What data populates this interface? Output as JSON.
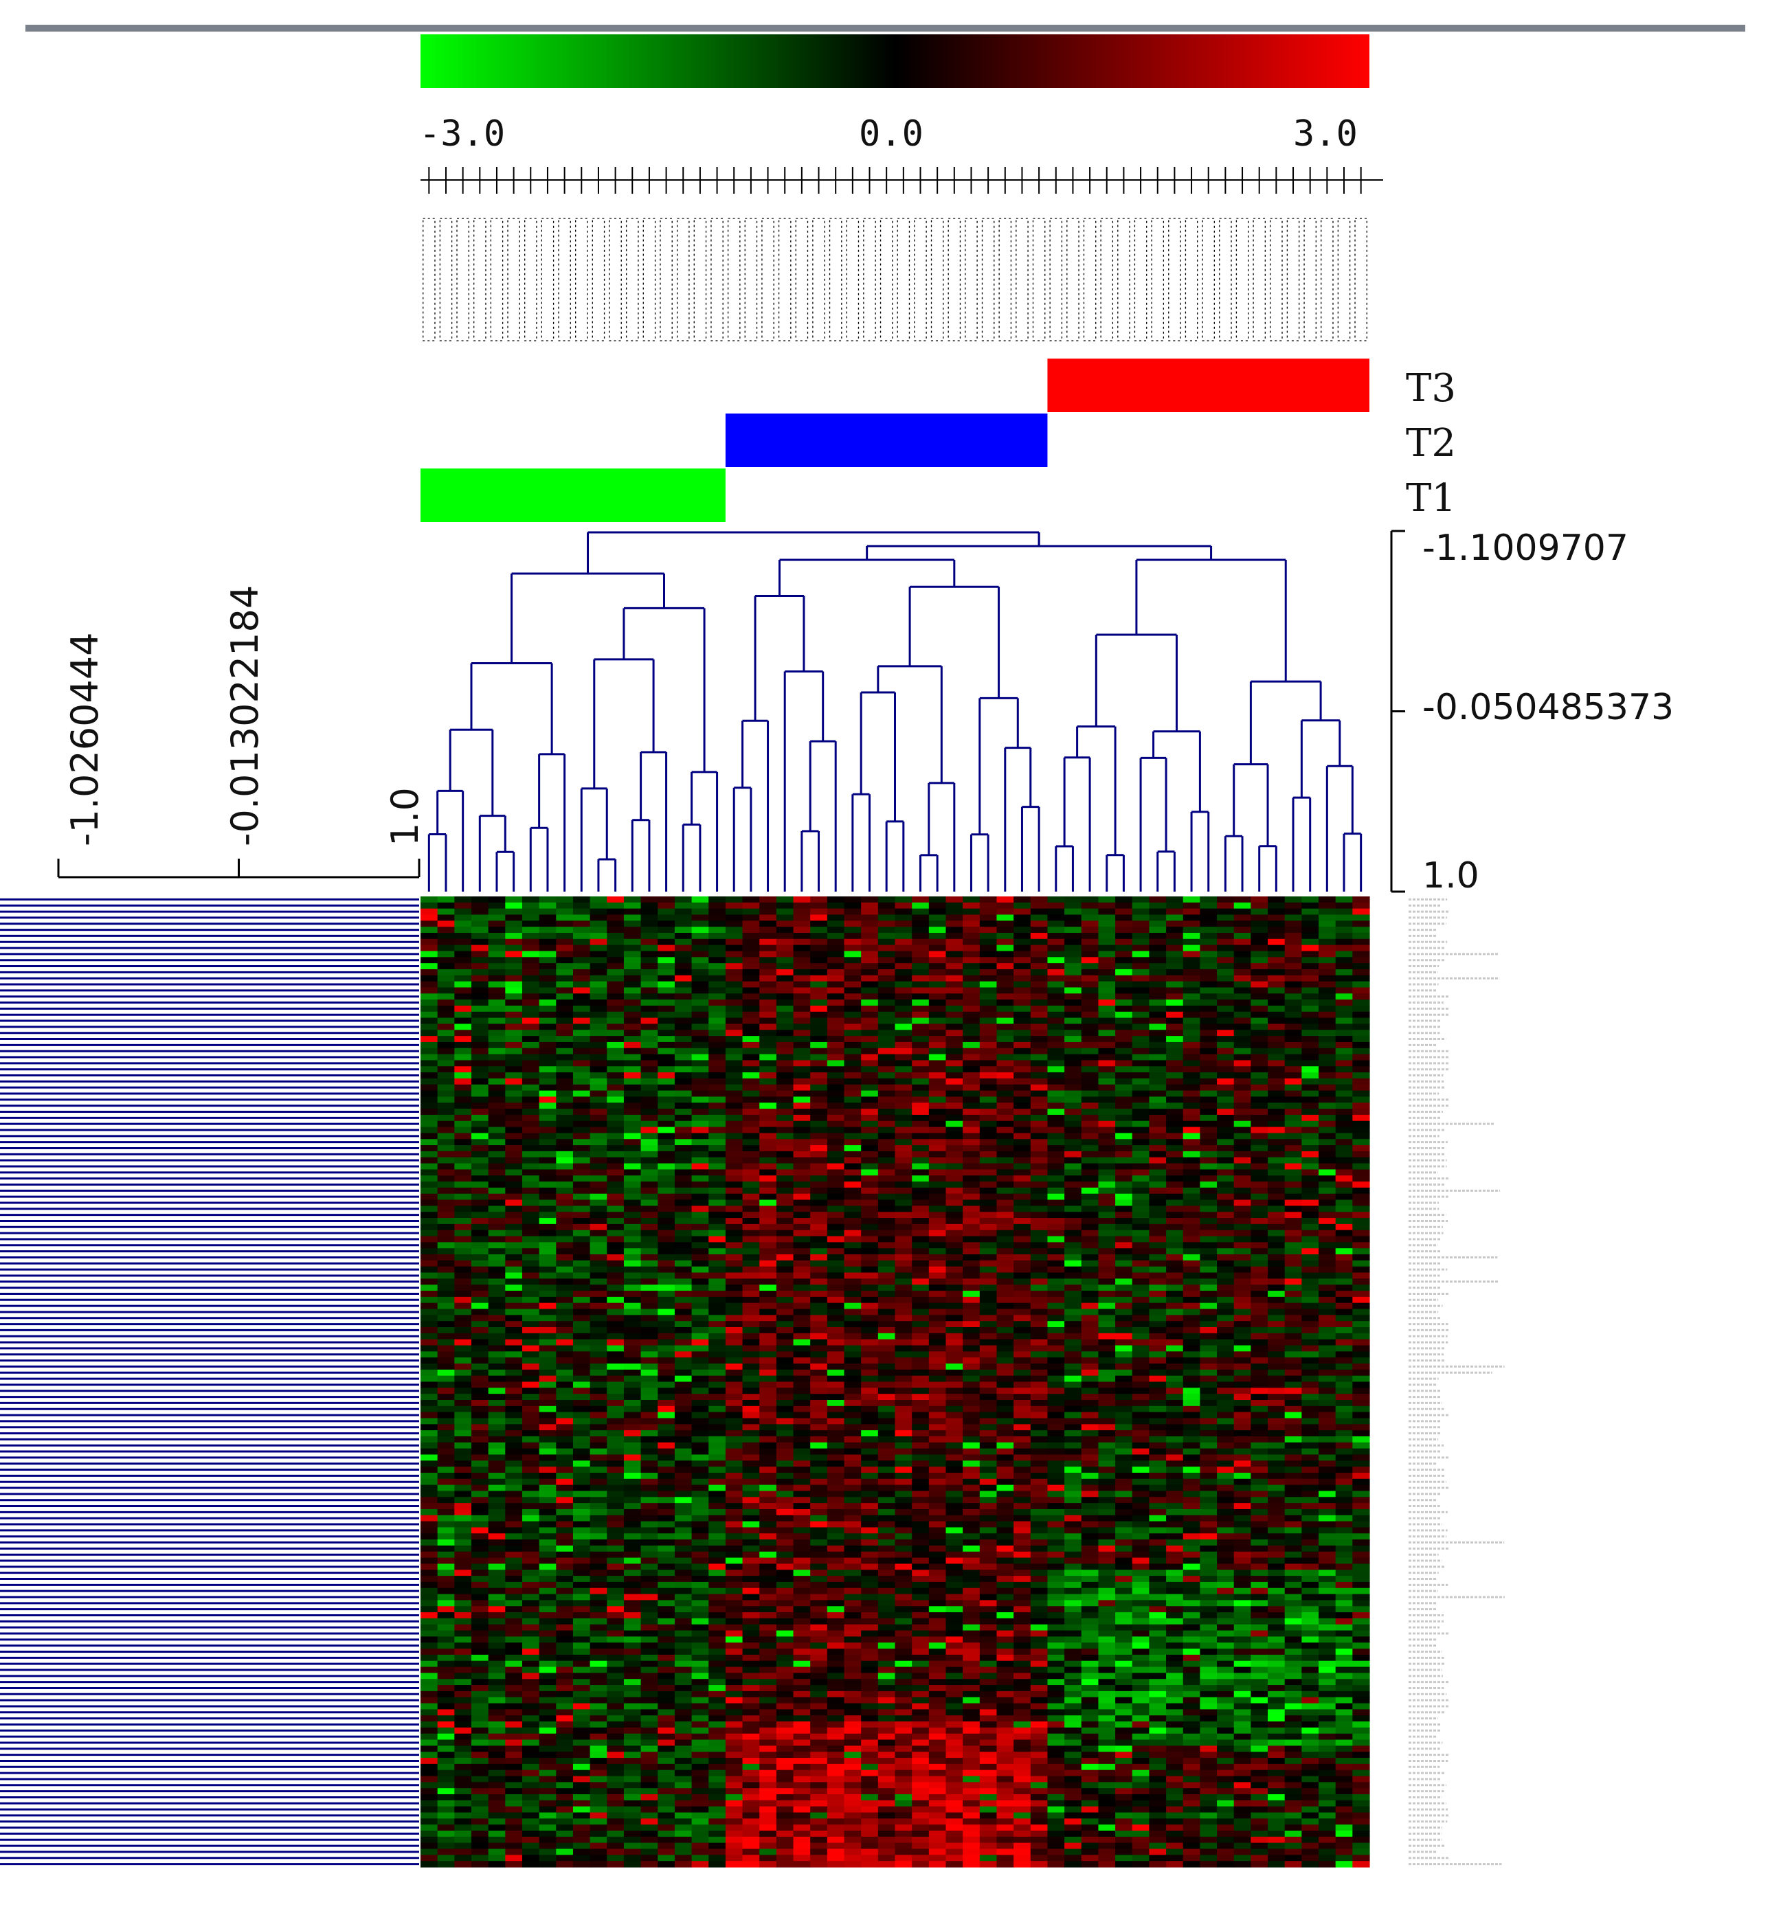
{
  "colors": {
    "low": "#00ff00",
    "mid": "#000000",
    "high": "#ff0000",
    "dendrogram": "#000080",
    "group_T1": "#00ff00",
    "group_T2": "#0000ff",
    "group_T3": "#ff0000",
    "rule": "#7a818a"
  },
  "chart_data": {
    "type": "heatmap",
    "title": "",
    "colorscale": {
      "min": -3.0,
      "mid": 0.0,
      "max": 3.0,
      "tick_labels": [
        "-3.0",
        "0.0",
        "3.0"
      ]
    },
    "n_columns": 56,
    "n_rows": 160,
    "column_groups": [
      {
        "name": "T1",
        "start": 0,
        "end": 18
      },
      {
        "name": "T2",
        "start": 18,
        "end": 37
      },
      {
        "name": "T3",
        "start": 37,
        "end": 56
      }
    ],
    "column_dendrogram_axis": {
      "ticks": [
        "-1.1009707",
        "-0.050485373",
        "1.0"
      ],
      "range": [
        -1.1009707,
        1.0
      ]
    },
    "row_dendrogram_axis": {
      "ticks": [
        "-1.0260444",
        "-0.013022184",
        "1.0"
      ],
      "range": [
        -1.0260444,
        1.0
      ]
    },
    "value_range": [
      -3.0,
      3.0
    ]
  }
}
